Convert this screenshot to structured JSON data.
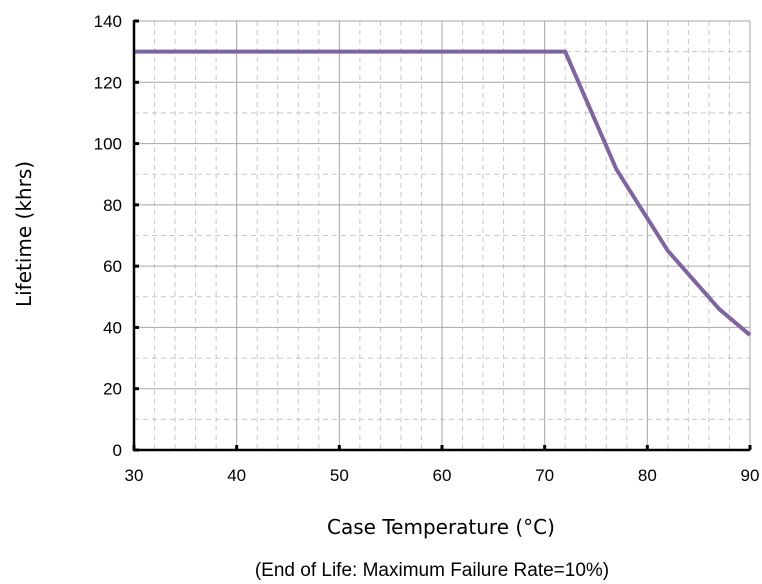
{
  "chart_data": {
    "type": "line",
    "title": "",
    "xlabel": "Case Temperature (°C)",
    "ylabel": "Lifetime (khrs)",
    "caption": "(End of Life: Maximum Failure Rate=10%)",
    "xlim": [
      30,
      90
    ],
    "ylim": [
      0,
      140
    ],
    "x_ticks": [
      30,
      40,
      50,
      60,
      70,
      80,
      90
    ],
    "y_ticks": [
      0,
      20,
      40,
      60,
      80,
      100,
      120,
      140
    ],
    "grid": true,
    "minor_grid": true,
    "legend": "none",
    "series": [
      {
        "color": "#8064a2",
        "x": [
          30,
          72,
          77,
          82,
          87,
          90
        ],
        "y": [
          130,
          130,
          91.5,
          65,
          46,
          37.5
        ]
      }
    ]
  }
}
